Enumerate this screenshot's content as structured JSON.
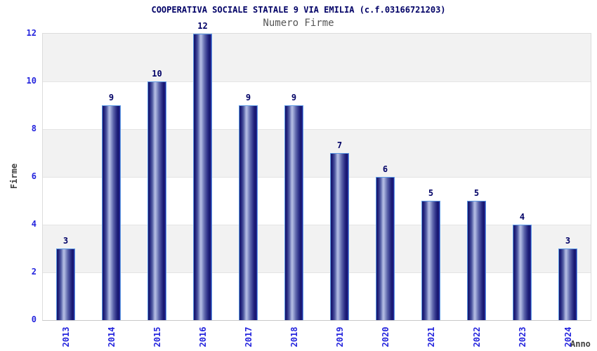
{
  "chart_data": {
    "type": "bar",
    "title": "COOPERATIVA SOCIALE STATALE 9 VIA EMILIA (c.f.03166721203)",
    "subtitle": "Numero Firme",
    "xlabel": "Anno",
    "ylabel": "Firme",
    "categories": [
      "2013",
      "2014",
      "2015",
      "2016",
      "2017",
      "2018",
      "2019",
      "2020",
      "2021",
      "2022",
      "2023",
      "2024"
    ],
    "values": [
      3,
      9,
      10,
      12,
      9,
      9,
      7,
      6,
      5,
      5,
      4,
      3
    ],
    "ylim": [
      0,
      12
    ],
    "yticks": [
      0,
      2,
      4,
      6,
      8,
      10,
      12
    ],
    "grid": "horizontal-bands-alternating",
    "legend": "none",
    "bar_value_labels": [
      "3",
      "9",
      "10",
      "12",
      "9",
      "9",
      "7",
      "6",
      "5",
      "5",
      "4",
      "3"
    ],
    "colors": {
      "title": "#000066",
      "subtitle": "#555555",
      "tick_label": "#2424dd",
      "value_label": "#000066",
      "axis_label": "#404040",
      "bar_dark": "#15156b",
      "bar_highlight": "#b7bfe4",
      "bar_outline": "#5d9ae4",
      "band_gray": "#f2f2f2",
      "band_white": "#ffffff",
      "grid_line": "#e4e4e4",
      "background": "#ffffff"
    }
  }
}
